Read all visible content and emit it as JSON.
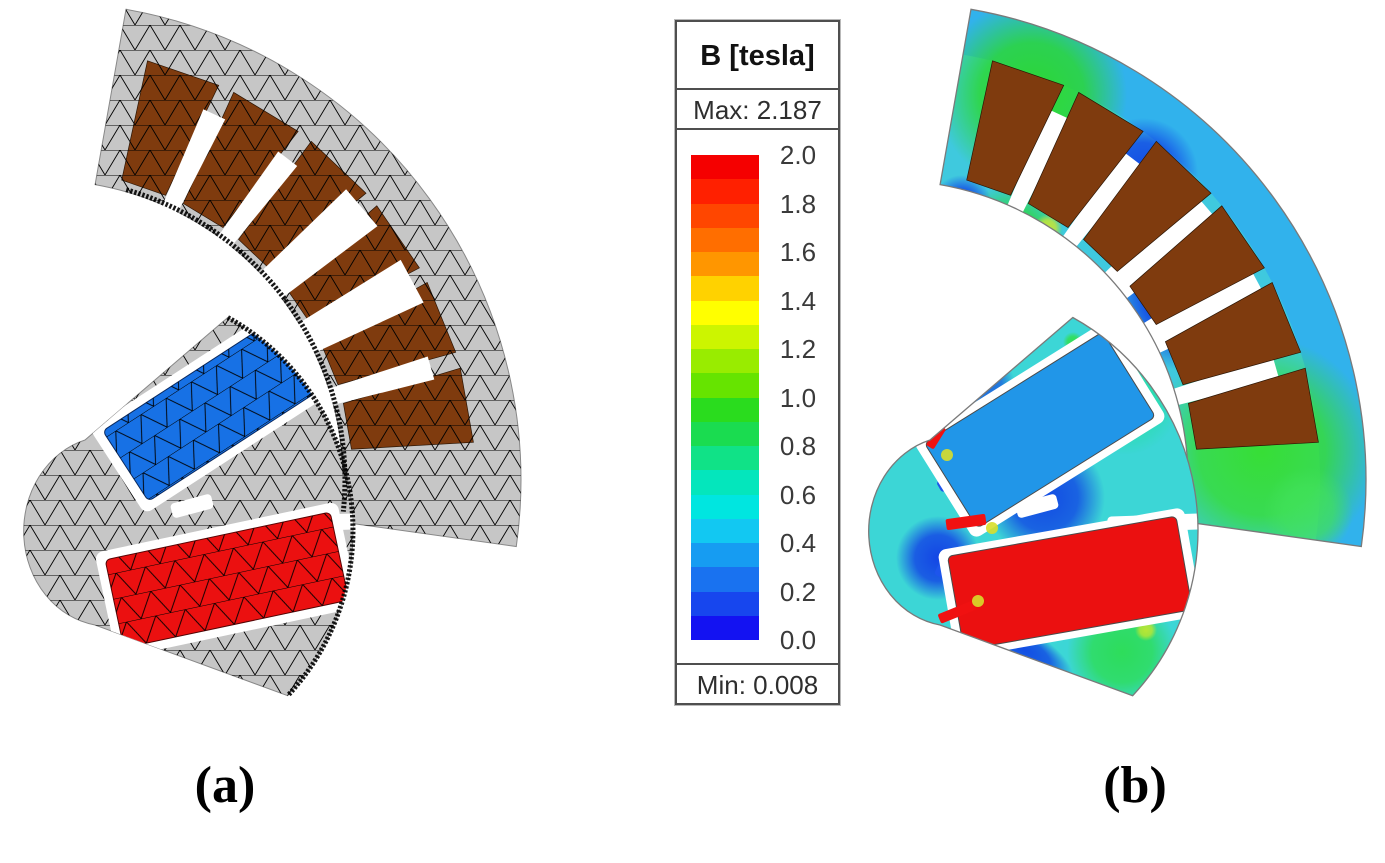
{
  "figure": {
    "description": "Finite element model of a permanent-magnet motor sector: (a) triangular mesh view, (b) magnetic flux density field plot"
  },
  "legend": {
    "title": "B [tesla]",
    "max_label": "Max: 2.187",
    "min_label": "Min: 0.008",
    "max": 2.187,
    "min": 0.008,
    "ticks": [
      "2.0",
      "1.8",
      "1.6",
      "1.4",
      "1.2",
      "1.0",
      "0.8",
      "0.6",
      "0.4",
      "0.2",
      "0.0"
    ],
    "band_colors_top_to_bottom": [
      "#F50000",
      "#FF2000",
      "#FF4600",
      "#FF6E00",
      "#FF9600",
      "#FFD200",
      "#FFFF00",
      "#CCF500",
      "#99EC00",
      "#66E400",
      "#2ADC1E",
      "#1ADC50",
      "#10E287",
      "#04E6BC",
      "#00E6E0",
      "#12C8F2",
      "#169CF2",
      "#1972F0",
      "#1746EE",
      "#1312F2"
    ]
  },
  "panels": {
    "a": {
      "label": "(a)",
      "kind": "FEM mesh view"
    },
    "b": {
      "label": "(b)",
      "kind": "flux density field plot"
    }
  },
  "colors": {
    "iron_gray": "#C6C6C6",
    "mesh_line": "#000000",
    "coil_brown": "#7F3B0E",
    "magnet_blue": "#1771E5",
    "magnet_blue_field": "#2196E8",
    "magnet_red": "#EB1010",
    "field_base_stator": "#3FC9DE",
    "field_base_rotor": "#3CD6D6",
    "field_yoke_blue": "#2EA9F0",
    "field_green": "#2BD92B",
    "field_dark_blue": "#0C36E6",
    "hot_spot_red": "#F01111",
    "hot_spot_yellow": "#D8DE2A",
    "outline_gray": "#7A7A7A"
  },
  "chart_data": {
    "type": "heatmap",
    "title": "B [tesla]",
    "colorbar_ticks": [
      2.0,
      1.8,
      1.6,
      1.4,
      1.2,
      1.0,
      0.8,
      0.6,
      0.4,
      0.2,
      0.0
    ],
    "colorbar_range": [
      0.0,
      2.0
    ],
    "field_max": 2.187,
    "field_min": 0.008,
    "legend_position": "center"
  }
}
